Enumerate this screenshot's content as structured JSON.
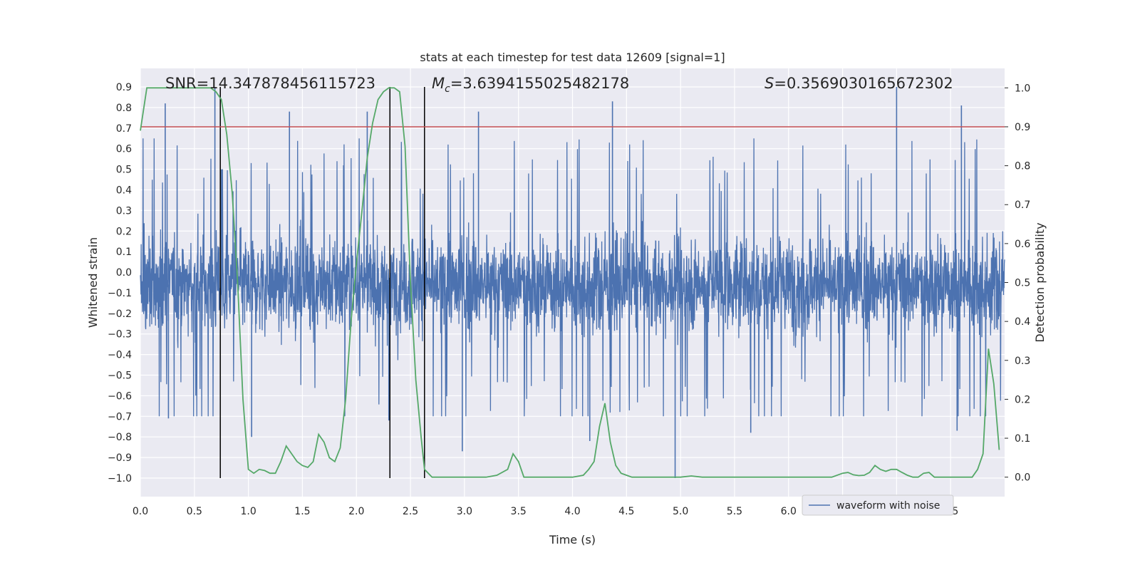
{
  "chart_data": {
    "type": "line",
    "title": "stats at each timestep for test data 12609 [signal=1]",
    "xlabel": "Time (s)",
    "ylabel_left": "Whitened strain",
    "ylabel_right": "Detection probability",
    "xlim": [
      0.0,
      8.0
    ],
    "ylim_left": [
      -1.09,
      0.99
    ],
    "ylim_right": [
      -0.05,
      1.05
    ],
    "xticks": [
      "0.0",
      "0.5",
      "1.0",
      "1.5",
      "2.0",
      "2.5",
      "3.0",
      "3.5",
      "4.0",
      "4.5",
      "5.0",
      "5.5",
      "6.0",
      "6.5",
      "7.0",
      "7.5"
    ],
    "yticks_left": [
      "0.9",
      "0.8",
      "0.7",
      "0.6",
      "0.5",
      "0.4",
      "0.3",
      "0.2",
      "0.1",
      "0.0",
      "−0.1",
      "−0.2",
      "−0.3",
      "−0.4",
      "−0.5",
      "−0.6",
      "−0.7",
      "−0.8",
      "−0.9",
      "−1.0"
    ],
    "yticks_right": [
      "1.0",
      "0.9",
      "0.8",
      "0.7",
      "0.6",
      "0.5",
      "0.4",
      "0.3",
      "0.2",
      "0.1",
      "0.0"
    ],
    "grid": true,
    "legend": {
      "placement": "lower-right",
      "entries": [
        "waveform with noise"
      ]
    },
    "annotations": {
      "snr": "SNR=14.347878456115723",
      "mc_symbol": "M",
      "mc_sub": "c",
      "mc_value": "=3.6394155025482178",
      "s_symbol": "S",
      "s_value": "=0.3569030165672302"
    },
    "threshold": {
      "axis": "right",
      "value": 0.9
    },
    "vertical_markers_s": [
      0.74,
      2.31,
      2.63
    ],
    "vertical_marker_range": [
      -1.0,
      0.9
    ],
    "series": [
      {
        "name": "waveform with noise",
        "axis": "left",
        "kind": "noise",
        "color": "#4c72b0",
        "description_range": [
          0.0,
          8.0
        ],
        "core_band": [
          -0.45,
          0.33
        ],
        "notable_peaks": [
          {
            "x": 0.23,
            "y": 0.82
          },
          {
            "x": 0.69,
            "y": 0.9
          },
          {
            "x": 0.75,
            "y": 0.5
          },
          {
            "x": 1.38,
            "y": 0.78
          },
          {
            "x": 2.1,
            "y": 0.78
          },
          {
            "x": 3.13,
            "y": 0.78
          },
          {
            "x": 4.37,
            "y": 0.83
          },
          {
            "x": 7.0,
            "y": 0.9
          },
          {
            "x": 7.6,
            "y": 0.81
          },
          {
            "x": 0.26,
            "y": -0.71
          },
          {
            "x": 1.03,
            "y": -0.8
          },
          {
            "x": 2.3,
            "y": -0.72
          },
          {
            "x": 2.98,
            "y": -0.87
          },
          {
            "x": 4.16,
            "y": -0.82
          },
          {
            "x": 4.95,
            "y": -1.0
          },
          {
            "x": 5.65,
            "y": -0.78
          },
          {
            "x": 7.56,
            "y": -0.77
          }
        ]
      },
      {
        "name": "detection probability",
        "axis": "right",
        "kind": "line",
        "color": "#55a868",
        "x": [
          0.0,
          0.06,
          0.15,
          0.3,
          0.5,
          0.65,
          0.7,
          0.75,
          0.8,
          0.85,
          0.9,
          0.95,
          1.0,
          1.05,
          1.1,
          1.15,
          1.2,
          1.25,
          1.3,
          1.35,
          1.4,
          1.45,
          1.5,
          1.55,
          1.6,
          1.65,
          1.7,
          1.75,
          1.8,
          1.85,
          1.9,
          1.95,
          2.0,
          2.05,
          2.1,
          2.15,
          2.2,
          2.25,
          2.3,
          2.35,
          2.4,
          2.45,
          2.5,
          2.55,
          2.6,
          2.63,
          2.7,
          2.75,
          2.8,
          2.85,
          2.9,
          2.95,
          3.0,
          3.1,
          3.2,
          3.3,
          3.4,
          3.45,
          3.5,
          3.55,
          3.6,
          3.7,
          3.8,
          3.9,
          4.0,
          4.1,
          4.15,
          4.2,
          4.25,
          4.3,
          4.35,
          4.4,
          4.45,
          4.5,
          4.55,
          4.6,
          4.7,
          4.8,
          4.9,
          5.0,
          5.1,
          5.2,
          5.3,
          5.5,
          5.7,
          5.9,
          6.1,
          6.3,
          6.4,
          6.5,
          6.55,
          6.6,
          6.65,
          6.7,
          6.75,
          6.8,
          6.85,
          6.9,
          6.95,
          7.0,
          7.05,
          7.1,
          7.15,
          7.2,
          7.25,
          7.3,
          7.35,
          7.4,
          7.5,
          7.6,
          7.7,
          7.75,
          7.8,
          7.85,
          7.9,
          7.95
        ],
        "y": [
          0.89,
          1.0,
          1.0,
          1.0,
          1.0,
          1.0,
          0.99,
          0.97,
          0.88,
          0.73,
          0.5,
          0.2,
          0.02,
          0.01,
          0.02,
          0.017,
          0.01,
          0.01,
          0.04,
          0.08,
          0.06,
          0.04,
          0.03,
          0.025,
          0.04,
          0.11,
          0.09,
          0.05,
          0.04,
          0.075,
          0.2,
          0.4,
          0.55,
          0.68,
          0.82,
          0.91,
          0.97,
          0.99,
          1.0,
          1.0,
          0.99,
          0.85,
          0.5,
          0.25,
          0.1,
          0.02,
          0.0,
          0.0,
          0.0,
          0.0,
          0.0,
          0.0,
          0.0,
          0.0,
          0.0,
          0.005,
          0.02,
          0.06,
          0.04,
          0.0,
          0.0,
          0.0,
          0.0,
          0.0,
          0.0,
          0.005,
          0.02,
          0.04,
          0.13,
          0.19,
          0.09,
          0.03,
          0.01,
          0.005,
          0.0,
          0.0,
          0.0,
          0.0,
          0.0,
          0.0,
          0.003,
          0.0,
          0.0,
          0.0,
          0.0,
          0.0,
          0.0,
          0.0,
          0.0,
          0.01,
          0.012,
          0.006,
          0.004,
          0.005,
          0.012,
          0.03,
          0.02,
          0.015,
          0.02,
          0.02,
          0.012,
          0.005,
          0.0,
          0.0,
          0.01,
          0.012,
          0.0,
          0.0,
          0.0,
          0.0,
          0.0,
          0.02,
          0.06,
          0.33,
          0.24,
          0.07
        ]
      }
    ]
  }
}
